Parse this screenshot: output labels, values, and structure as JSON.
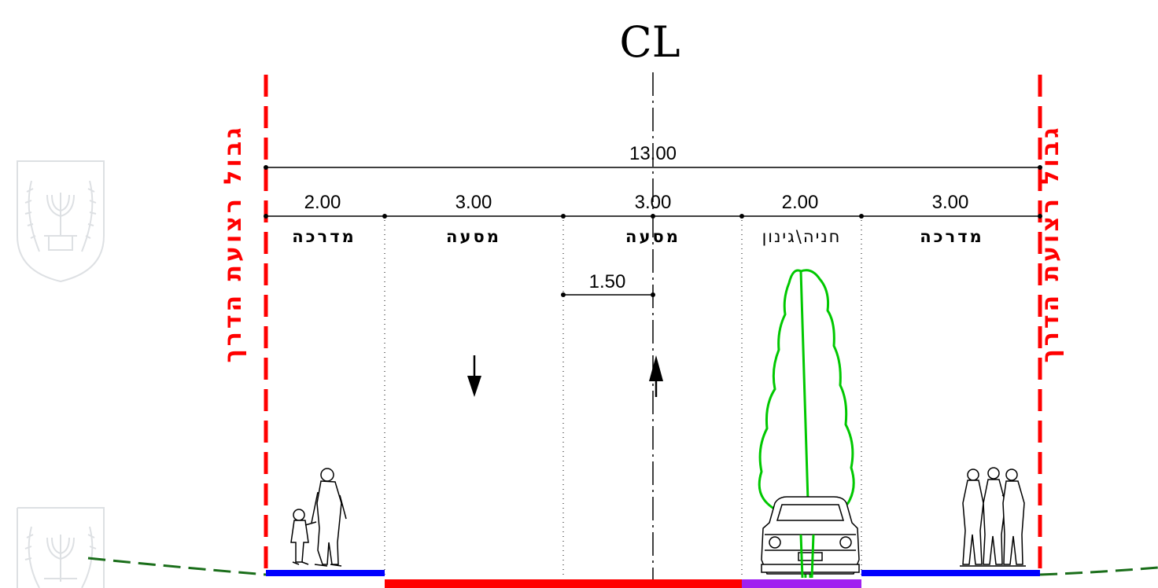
{
  "centerline_label": "CL",
  "total_width": "13.00",
  "boundary_label": "גבול רצועת הדרך",
  "segments": [
    {
      "id": "right-sidewalk",
      "width": "3.00",
      "label": "מדרכה"
    },
    {
      "id": "parking-planting",
      "width": "2.00",
      "label": "חניה\\גינון"
    },
    {
      "id": "right-lane",
      "width": "3.00",
      "label": "מסעה"
    },
    {
      "id": "left-lane",
      "width": "3.00",
      "label": "מסעה"
    },
    {
      "id": "left-sidewalk",
      "width": "2.00",
      "label": "מדרכה"
    }
  ],
  "half_width_dimension": "1.50",
  "colors": {
    "boundary": "#ff0000",
    "sidewalk": "#0000ff",
    "roadway": "#ff0000",
    "parking_planting": "#a020f0",
    "tree": "#00c800",
    "ground": "#1a6e1a",
    "emblem": "#c8ccd2"
  },
  "icons": [
    "emblem-watermark",
    "pedestrians-adult-child",
    "pedestrians-group",
    "tree",
    "car-front",
    "down-arrow",
    "up-arrow"
  ]
}
